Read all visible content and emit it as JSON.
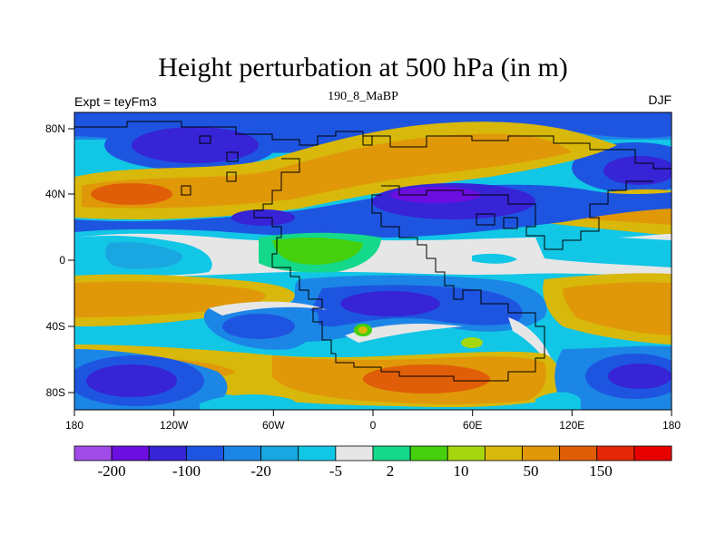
{
  "title": "Height perturbation at 500 hPa (in m)",
  "left_label": "Expt = teyFm3",
  "center_label": "190_8_MaBP",
  "right_label": "DJF",
  "colors": {
    "band0": "#a04be6",
    "band1": "#6a0fe0",
    "band2": "#3624d6",
    "band3": "#1e55e0",
    "band4": "#1c86e6",
    "band5": "#1aa6e0",
    "band6": "#12c6e6",
    "band7": "#e6e6e6",
    "band8": "#14d88a",
    "band9": "#44d00c",
    "band10": "#a6d60e",
    "band11": "#d8b80a",
    "band12": "#e09808",
    "band13": "#e05e08",
    "band14": "#e62808",
    "band15": "#e60000"
  },
  "chart_data": {
    "type": "heatmap",
    "x_ticks": [
      "180",
      "120W",
      "60W",
      "0",
      "60E",
      "120E",
      "180"
    ],
    "y_ticks": [
      "80N",
      "40N",
      "0",
      "40S",
      "80S"
    ],
    "colorbar_labels": [
      "-200",
      "-100",
      "-20",
      "-5",
      "2",
      "10",
      "50",
      "150"
    ],
    "colorbar_levels": 16
  }
}
